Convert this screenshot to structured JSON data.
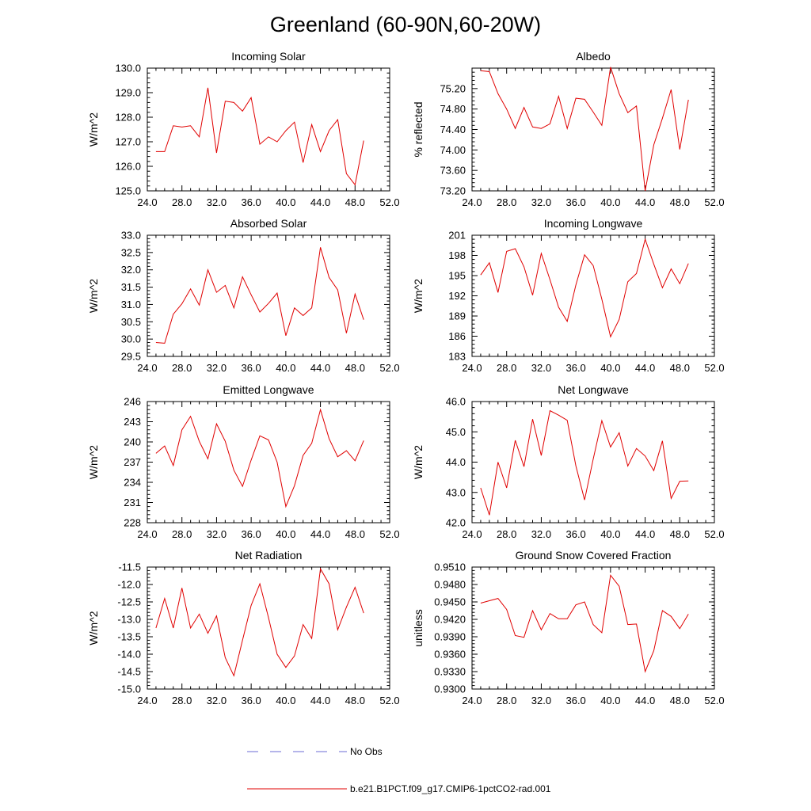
{
  "title": "Greenland (60-90N,60-20W)",
  "legend": {
    "entries": [
      {
        "label": "No Obs",
        "color": "#6b6bd6",
        "style": "dashed"
      },
      {
        "label": "b.e21.B1PCT.f09_g17.CMIP6-1pctCO2-rad.001",
        "color": "#e00000",
        "style": "solid"
      }
    ]
  },
  "chart_data": [
    {
      "type": "line",
      "title": "Incoming Solar",
      "ylabel": "W/m^2",
      "xlim": [
        24,
        52
      ],
      "ylim": [
        125.0,
        130.0
      ],
      "xticks": [
        "24.0",
        "28.0",
        "32.0",
        "36.0",
        "40.0",
        "44.0",
        "48.0",
        "52.0"
      ],
      "yticks": [
        "125.0",
        "126.0",
        "127.0",
        "128.0",
        "129.0",
        "130.0"
      ],
      "series": [
        {
          "color": "#e00000",
          "x": [
            25,
            26,
            27,
            28,
            29,
            30,
            31,
            32,
            33,
            34,
            35,
            36,
            37,
            38,
            39,
            40,
            41,
            42,
            43,
            44,
            45,
            46,
            47,
            48,
            49
          ],
          "y": [
            126.6,
            126.6,
            127.65,
            127.6,
            127.65,
            127.2,
            129.2,
            126.55,
            128.65,
            128.6,
            128.25,
            128.8,
            126.9,
            127.2,
            127.0,
            127.45,
            127.8,
            126.15,
            127.7,
            126.6,
            127.45,
            127.9,
            125.7,
            125.25,
            127.05
          ]
        }
      ]
    },
    {
      "type": "line",
      "title": "Albedo",
      "ylabel": "% reflected",
      "xlim": [
        24,
        52
      ],
      "ylim": [
        73.2,
        75.6
      ],
      "xticks": [
        "24.0",
        "28.0",
        "32.0",
        "36.0",
        "40.0",
        "44.0",
        "48.0",
        "52.0"
      ],
      "yticks": [
        "73.20",
        "73.60",
        "74.00",
        "74.40",
        "74.80",
        "75.20"
      ],
      "series": [
        {
          "color": "#e00000",
          "x": [
            25,
            26,
            27,
            28,
            29,
            30,
            31,
            32,
            33,
            34,
            35,
            36,
            37,
            38,
            39,
            40,
            41,
            42,
            43,
            44,
            45,
            46,
            47,
            48,
            49
          ],
          "y": [
            75.55,
            75.53,
            75.1,
            74.8,
            74.42,
            74.83,
            74.45,
            74.42,
            74.51,
            75.05,
            74.42,
            75.01,
            74.99,
            74.74,
            74.48,
            75.62,
            75.1,
            74.73,
            74.86,
            73.2,
            74.1,
            74.62,
            75.18,
            74.01,
            74.98
          ]
        }
      ]
    },
    {
      "type": "line",
      "title": "Absorbed Solar",
      "ylabel": "W/m^2",
      "xlim": [
        24,
        52
      ],
      "ylim": [
        29.5,
        33.0
      ],
      "xticks": [
        "24.0",
        "28.0",
        "32.0",
        "36.0",
        "40.0",
        "44.0",
        "48.0",
        "52.0"
      ],
      "yticks": [
        "29.5",
        "30.0",
        "30.5",
        "31.0",
        "31.5",
        "32.0",
        "32.5",
        "33.0"
      ],
      "series": [
        {
          "color": "#e00000",
          "x": [
            25,
            26,
            27,
            28,
            29,
            30,
            31,
            32,
            33,
            34,
            35,
            36,
            37,
            38,
            39,
            40,
            41,
            42,
            43,
            44,
            45,
            46,
            47,
            48,
            49
          ],
          "y": [
            29.9,
            29.88,
            30.72,
            31.02,
            31.45,
            30.98,
            32.0,
            31.35,
            31.55,
            30.9,
            31.8,
            31.28,
            30.78,
            31.03,
            31.33,
            30.1,
            30.9,
            30.68,
            30.9,
            32.65,
            31.78,
            31.42,
            30.17,
            31.3,
            30.56
          ]
        }
      ]
    },
    {
      "type": "line",
      "title": "Incoming Longwave",
      "ylabel": "W/m^2",
      "xlim": [
        24,
        52
      ],
      "ylim": [
        183,
        201
      ],
      "xticks": [
        "24.0",
        "28.0",
        "32.0",
        "36.0",
        "40.0",
        "44.0",
        "48.0",
        "52.0"
      ],
      "yticks": [
        "183",
        "186",
        "189",
        "192",
        "195",
        "198",
        "201"
      ],
      "series": [
        {
          "color": "#e00000",
          "x": [
            25,
            26,
            27,
            28,
            29,
            30,
            31,
            32,
            33,
            34,
            35,
            36,
            37,
            38,
            39,
            40,
            41,
            42,
            43,
            44,
            45,
            46,
            47,
            48,
            49
          ],
          "y": [
            195.1,
            196.9,
            192.5,
            198.6,
            199.0,
            196.3,
            192.1,
            198.3,
            194.4,
            190.3,
            188.2,
            193.6,
            198.1,
            196.5,
            191.5,
            185.9,
            188.5,
            194.1,
            195.3,
            200.4,
            196.7,
            193.2,
            196.0,
            193.8,
            196.8
          ]
        }
      ]
    },
    {
      "type": "line",
      "title": "Emitted Longwave",
      "ylabel": "W/m^2",
      "xlim": [
        24,
        52
      ],
      "ylim": [
        228,
        246
      ],
      "xticks": [
        "24.0",
        "28.0",
        "32.0",
        "36.0",
        "40.0",
        "44.0",
        "48.0",
        "52.0"
      ],
      "yticks": [
        "228",
        "231",
        "234",
        "237",
        "240",
        "243",
        "246"
      ],
      "series": [
        {
          "color": "#e00000",
          "x": [
            25,
            26,
            27,
            28,
            29,
            30,
            31,
            32,
            33,
            34,
            35,
            36,
            37,
            38,
            39,
            40,
            41,
            42,
            43,
            44,
            45,
            46,
            47,
            48,
            49
          ],
          "y": [
            238.3,
            239.4,
            236.5,
            241.8,
            243.8,
            240.1,
            237.5,
            242.7,
            240.1,
            235.8,
            233.4,
            237.3,
            240.9,
            240.3,
            237.0,
            230.4,
            233.5,
            238.0,
            239.8,
            244.8,
            240.5,
            237.8,
            238.7,
            237.2,
            240.2
          ]
        }
      ]
    },
    {
      "type": "line",
      "title": "Net Longwave",
      "ylabel": "W/m^2",
      "xlim": [
        24,
        52
      ],
      "ylim": [
        42.0,
        46.0
      ],
      "xticks": [
        "24.0",
        "28.0",
        "32.0",
        "36.0",
        "40.0",
        "44.0",
        "48.0",
        "52.0"
      ],
      "yticks": [
        "42.0",
        "43.0",
        "44.0",
        "45.0",
        "46.0"
      ],
      "series": [
        {
          "color": "#e00000",
          "x": [
            25,
            26,
            27,
            28,
            29,
            30,
            31,
            32,
            33,
            34,
            35,
            36,
            37,
            38,
            39,
            40,
            41,
            42,
            43,
            44,
            45,
            46,
            47,
            48,
            49
          ],
          "y": [
            43.15,
            42.25,
            44.0,
            43.15,
            44.72,
            43.85,
            45.42,
            44.22,
            45.7,
            45.55,
            45.38,
            43.88,
            42.75,
            44.1,
            45.37,
            44.5,
            44.97,
            43.87,
            44.45,
            44.2,
            43.72,
            44.7,
            42.8,
            43.37,
            43.38
          ]
        }
      ]
    },
    {
      "type": "line",
      "title": "Net Radiation",
      "ylabel": "W/m^2",
      "xlim": [
        24,
        52
      ],
      "ylim": [
        -15.0,
        -11.5
      ],
      "xticks": [
        "24.0",
        "28.0",
        "32.0",
        "36.0",
        "40.0",
        "44.0",
        "48.0",
        "52.0"
      ],
      "yticks": [
        "-15.0",
        "-14.5",
        "-14.0",
        "-13.5",
        "-13.0",
        "-12.5",
        "-12.0",
        "-11.5"
      ],
      "series": [
        {
          "color": "#e00000",
          "x": [
            25,
            26,
            27,
            28,
            29,
            30,
            31,
            32,
            33,
            34,
            35,
            36,
            37,
            38,
            39,
            40,
            41,
            42,
            43,
            44,
            45,
            46,
            47,
            48,
            49
          ],
          "y": [
            -13.25,
            -12.4,
            -13.25,
            -12.1,
            -13.25,
            -12.85,
            -13.4,
            -12.9,
            -14.1,
            -14.62,
            -13.6,
            -12.6,
            -11.98,
            -12.95,
            -14.0,
            -14.38,
            -14.05,
            -13.15,
            -13.55,
            -11.55,
            -11.98,
            -13.3,
            -12.65,
            -12.08,
            -12.82
          ]
        }
      ]
    },
    {
      "type": "line",
      "title": "Ground Snow Covered Fraction",
      "ylabel": "unitless",
      "xlim": [
        24,
        52
      ],
      "ylim": [
        0.93,
        0.951
      ],
      "xticks": [
        "24.0",
        "28.0",
        "32.0",
        "36.0",
        "40.0",
        "44.0",
        "48.0",
        "52.0"
      ],
      "yticks": [
        "0.9300",
        "0.9330",
        "0.9360",
        "0.9390",
        "0.9420",
        "0.9450",
        "0.9480",
        "0.9510"
      ],
      "series": [
        {
          "color": "#e00000",
          "x": [
            25,
            26,
            27,
            28,
            29,
            30,
            31,
            32,
            33,
            34,
            35,
            36,
            37,
            38,
            39,
            40,
            41,
            42,
            43,
            44,
            45,
            46,
            47,
            48,
            49
          ],
          "y": [
            0.9448,
            0.9452,
            0.9456,
            0.9437,
            0.9392,
            0.9389,
            0.9435,
            0.9402,
            0.943,
            0.9421,
            0.9421,
            0.9445,
            0.945,
            0.9411,
            0.9397,
            0.9496,
            0.9477,
            0.9411,
            0.9412,
            0.933,
            0.9366,
            0.9435,
            0.9425,
            0.9404,
            0.9429
          ]
        }
      ]
    }
  ]
}
